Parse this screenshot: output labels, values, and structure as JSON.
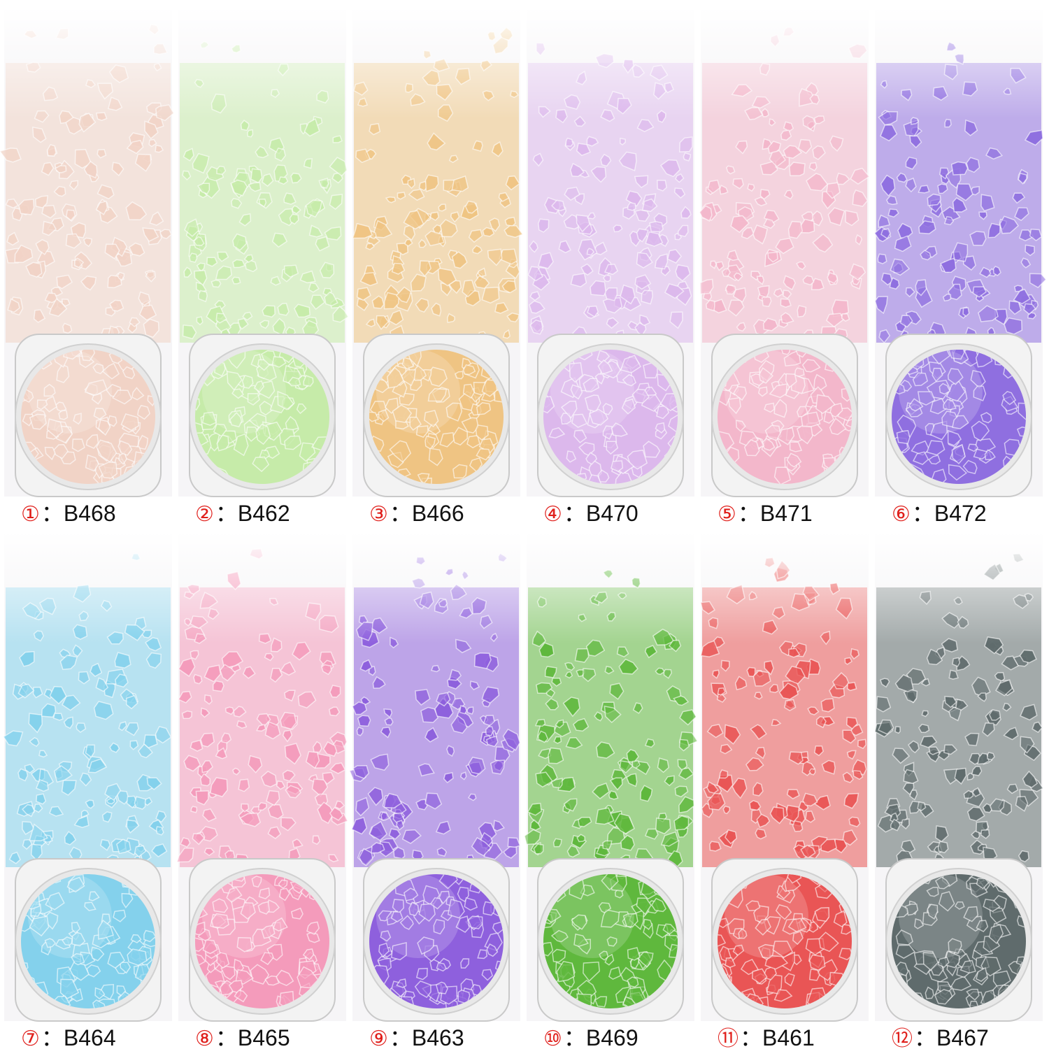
{
  "items": [
    {
      "marker": "①",
      "code": "：B468",
      "color": "#f1d3c6"
    },
    {
      "marker": "②",
      "code": "：B462",
      "color": "#c6eba9"
    },
    {
      "marker": "③",
      "code": "：B466",
      "color": "#efc483"
    },
    {
      "marker": "④",
      "code": "：B470",
      "color": "#dcb8ec"
    },
    {
      "marker": "⑤",
      "code": "：B471",
      "color": "#f3b7cb"
    },
    {
      "marker": "⑥",
      "code": "：B472",
      "color": "#8f6fe0"
    },
    {
      "marker": "⑦",
      "code": "：B464",
      "color": "#84d1ec"
    },
    {
      "marker": "⑧",
      "code": "：B465",
      "color": "#f49bbb"
    },
    {
      "marker": "⑨",
      "code": "：B463",
      "color": "#8e60dd"
    },
    {
      "marker": "⑩",
      "code": "：B469",
      "color": "#5fb83d"
    },
    {
      "marker": "⑪",
      "code": "：B461",
      "color": "#e95555"
    },
    {
      "marker": "⑫",
      "code": "：B467",
      "color": "#5f6b6c"
    }
  ]
}
